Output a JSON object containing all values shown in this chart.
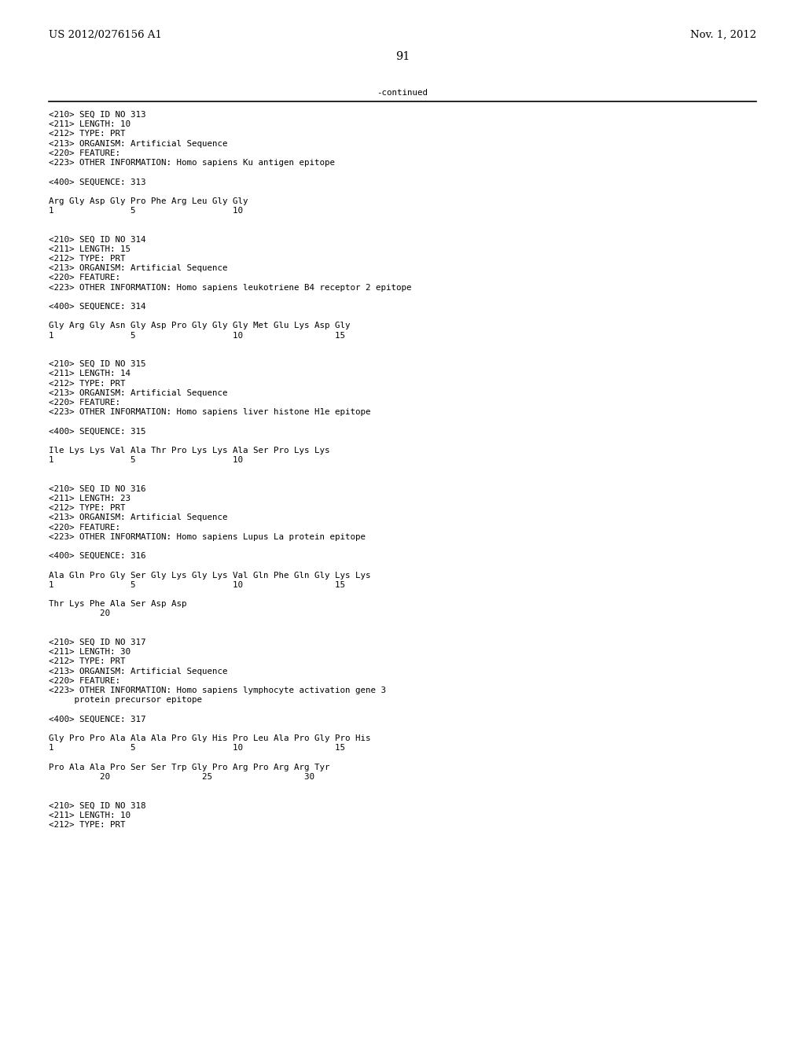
{
  "header_left": "US 2012/0276156 A1",
  "header_right": "Nov. 1, 2012",
  "page_number": "91",
  "continued_text": "-continued",
  "background_color": "#ffffff",
  "text_color": "#000000",
  "font_size_header": 9.5,
  "font_size_body": 7.8,
  "font_size_page": 10.5,
  "content": [
    "<210> SEQ ID NO 313",
    "<211> LENGTH: 10",
    "<212> TYPE: PRT",
    "<213> ORGANISM: Artificial Sequence",
    "<220> FEATURE:",
    "<223> OTHER INFORMATION: Homo sapiens Ku antigen epitope",
    "",
    "<400> SEQUENCE: 313",
    "",
    "Arg Gly Asp Gly Pro Phe Arg Leu Gly Gly",
    "1               5                   10",
    "",
    "",
    "<210> SEQ ID NO 314",
    "<211> LENGTH: 15",
    "<212> TYPE: PRT",
    "<213> ORGANISM: Artificial Sequence",
    "<220> FEATURE:",
    "<223> OTHER INFORMATION: Homo sapiens leukotriene B4 receptor 2 epitope",
    "",
    "<400> SEQUENCE: 314",
    "",
    "Gly Arg Gly Asn Gly Asp Pro Gly Gly Gly Met Glu Lys Asp Gly",
    "1               5                   10                  15",
    "",
    "",
    "<210> SEQ ID NO 315",
    "<211> LENGTH: 14",
    "<212> TYPE: PRT",
    "<213> ORGANISM: Artificial Sequence",
    "<220> FEATURE:",
    "<223> OTHER INFORMATION: Homo sapiens liver histone H1e epitope",
    "",
    "<400> SEQUENCE: 315",
    "",
    "Ile Lys Lys Val Ala Thr Pro Lys Lys Ala Ser Pro Lys Lys",
    "1               5                   10",
    "",
    "",
    "<210> SEQ ID NO 316",
    "<211> LENGTH: 23",
    "<212> TYPE: PRT",
    "<213> ORGANISM: Artificial Sequence",
    "<220> FEATURE:",
    "<223> OTHER INFORMATION: Homo sapiens Lupus La protein epitope",
    "",
    "<400> SEQUENCE: 316",
    "",
    "Ala Gln Pro Gly Ser Gly Lys Gly Lys Val Gln Phe Gln Gly Lys Lys",
    "1               5                   10                  15",
    "",
    "Thr Lys Phe Ala Ser Asp Asp",
    "          20",
    "",
    "",
    "<210> SEQ ID NO 317",
    "<211> LENGTH: 30",
    "<212> TYPE: PRT",
    "<213> ORGANISM: Artificial Sequence",
    "<220> FEATURE:",
    "<223> OTHER INFORMATION: Homo sapiens lymphocyte activation gene 3",
    "     protein precursor epitope",
    "",
    "<400> SEQUENCE: 317",
    "",
    "Gly Pro Pro Ala Ala Ala Pro Gly His Pro Leu Ala Pro Gly Pro His",
    "1               5                   10                  15",
    "",
    "Pro Ala Ala Pro Ser Ser Trp Gly Pro Arg Pro Arg Arg Tyr",
    "          20                  25                  30",
    "",
    "",
    "<210> SEQ ID NO 318",
    "<211> LENGTH: 10",
    "<212> TYPE: PRT"
  ]
}
